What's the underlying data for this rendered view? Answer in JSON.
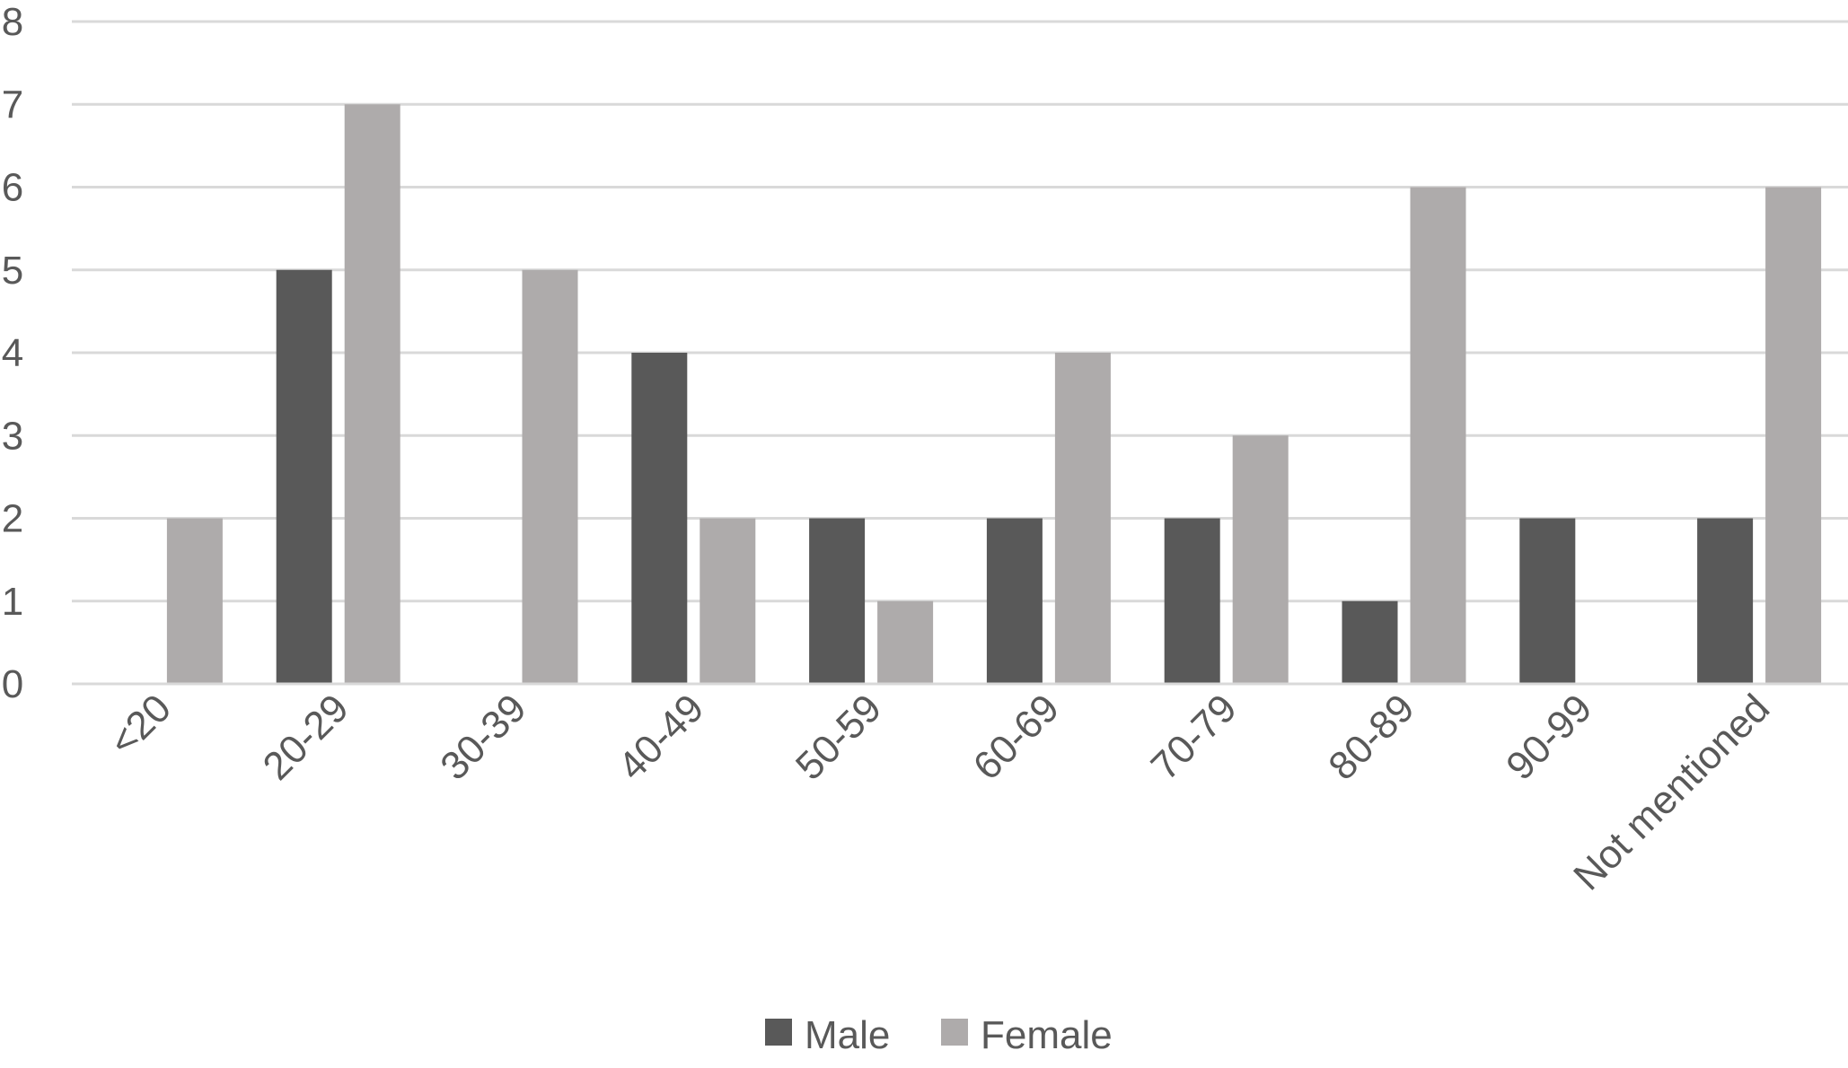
{
  "chart_data": {
    "type": "bar",
    "title": "",
    "xlabel": "",
    "ylabel": "",
    "categories": [
      "<20",
      "20-29",
      "30-39",
      "40-49",
      "50-59",
      "60-69",
      "70-79",
      "80-89",
      "90-99",
      "Not mentioned"
    ],
    "series": [
      {
        "name": "Male",
        "color": "#595959",
        "values": [
          0,
          5,
          0,
          4,
          2,
          2,
          2,
          1,
          2,
          2
        ]
      },
      {
        "name": "Female",
        "color": "#AEABAB",
        "values": [
          2,
          7,
          5,
          2,
          1,
          4,
          3,
          6,
          0,
          6
        ]
      }
    ],
    "ylim": [
      0,
      8
    ],
    "yticks": [
      "0",
      "1",
      "2",
      "3",
      "4",
      "5",
      "6",
      "7",
      "8"
    ],
    "grid": true,
    "legend_position": "bottom"
  }
}
